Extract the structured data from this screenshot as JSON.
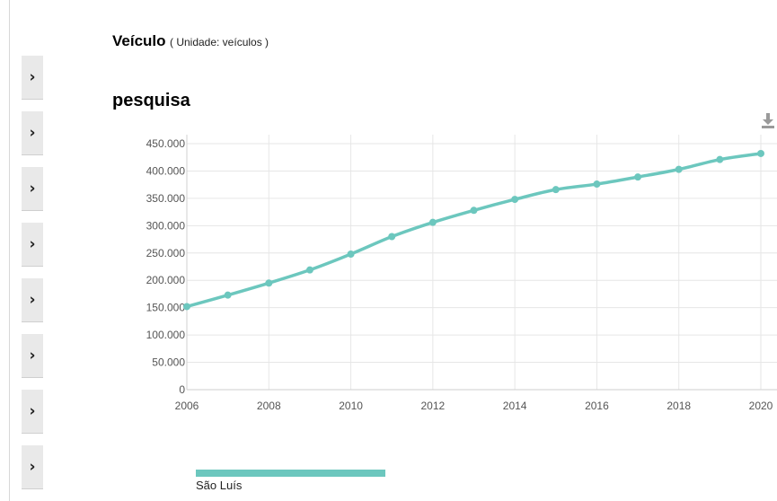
{
  "header": {
    "title": "Veículo",
    "unit_text": "( Unidade: veículos )",
    "subtitle": "pesquisa"
  },
  "toolbar": {
    "download_icon": "download-icon"
  },
  "sidebar": {
    "button_count": 8,
    "icon": "chevron-right-icon",
    "glyph": "›"
  },
  "chart_data": {
    "type": "line",
    "title": "pesquisa",
    "x": [
      2006,
      2007,
      2008,
      2009,
      2010,
      2011,
      2012,
      2013,
      2014,
      2015,
      2016,
      2017,
      2018,
      2019,
      2020
    ],
    "series": [
      {
        "name": "São Luís",
        "color": "#6cc7be",
        "values": [
          152000,
          173000,
          195000,
          219000,
          248000,
          280000,
          306000,
          328000,
          348000,
          366000,
          376000,
          389000,
          403000,
          421000,
          432000
        ]
      }
    ],
    "xlim": [
      2006,
      2020
    ],
    "ylim": [
      0,
      450000
    ],
    "x_ticks": [
      "2006",
      "2008",
      "2010",
      "2012",
      "2014",
      "2016",
      "2018",
      "2020"
    ],
    "y_ticks": [
      "0",
      "50.000",
      "100.000",
      "150.000",
      "200.000",
      "250.000",
      "300.000",
      "350.000",
      "400.000",
      "450.000"
    ],
    "grid": true,
    "legend": "bottom"
  }
}
